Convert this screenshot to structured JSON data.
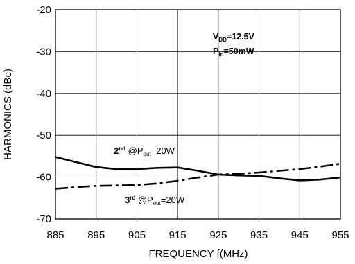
{
  "chart_data": {
    "type": "line",
    "title": "",
    "xlabel": "FREQUENCY f(MHz)",
    "ylabel": "HARMONICS (dBc)",
    "xlim": [
      885,
      955
    ],
    "ylim": [
      -70,
      -20
    ],
    "xticks": [
      885,
      895,
      905,
      915,
      925,
      935,
      945,
      955
    ],
    "xtick_labels": [
      "885",
      "895",
      "905",
      "915",
      "925",
      "935",
      "945",
      "955"
    ],
    "yticks": [
      -20,
      -30,
      -40,
      -50,
      -60,
      -70
    ],
    "ytick_labels": [
      "-20",
      "-30",
      "-40",
      "-50",
      "-60",
      "-70"
    ],
    "grid": true,
    "series": [
      {
        "key": "second",
        "style": "solid",
        "color": "#000000",
        "x": [
          885,
          890,
          895,
          900,
          905,
          910,
          915,
          920,
          925,
          930,
          935,
          940,
          945,
          950,
          955
        ],
        "y": [
          -55.2,
          -56.4,
          -57.6,
          -58.1,
          -58.1,
          -57.8,
          -57.7,
          -58.5,
          -59.4,
          -59.6,
          -59.7,
          -60.3,
          -60.8,
          -60.6,
          -60.1
        ]
      },
      {
        "key": "third",
        "style": "dash-dot",
        "color": "#000000",
        "x": [
          885,
          890,
          895,
          900,
          905,
          910,
          915,
          920,
          925,
          930,
          935,
          940,
          945,
          950,
          955
        ],
        "y": [
          -62.8,
          -62.4,
          -62.1,
          -62.0,
          -61.9,
          -61.5,
          -60.9,
          -60.1,
          -59.4,
          -59.2,
          -58.9,
          -58.5,
          -58.1,
          -57.5,
          -56.8
        ]
      }
    ],
    "annotations": {
      "conditions": {
        "vdd": {
          "main": "V",
          "sub": "DD",
          "rest": "=12.5V"
        },
        "pin": {
          "main": "P",
          "sub": "in",
          "rest": "=50mW"
        }
      },
      "second_label": {
        "ord": "2",
        "sup": "nd",
        "at": " @P",
        "sub": "out",
        "rest": "=20W"
      },
      "third_label": {
        "ord": "3",
        "sup": "rd",
        "at": " @P",
        "sub": "out",
        "rest": "=20W"
      }
    }
  }
}
